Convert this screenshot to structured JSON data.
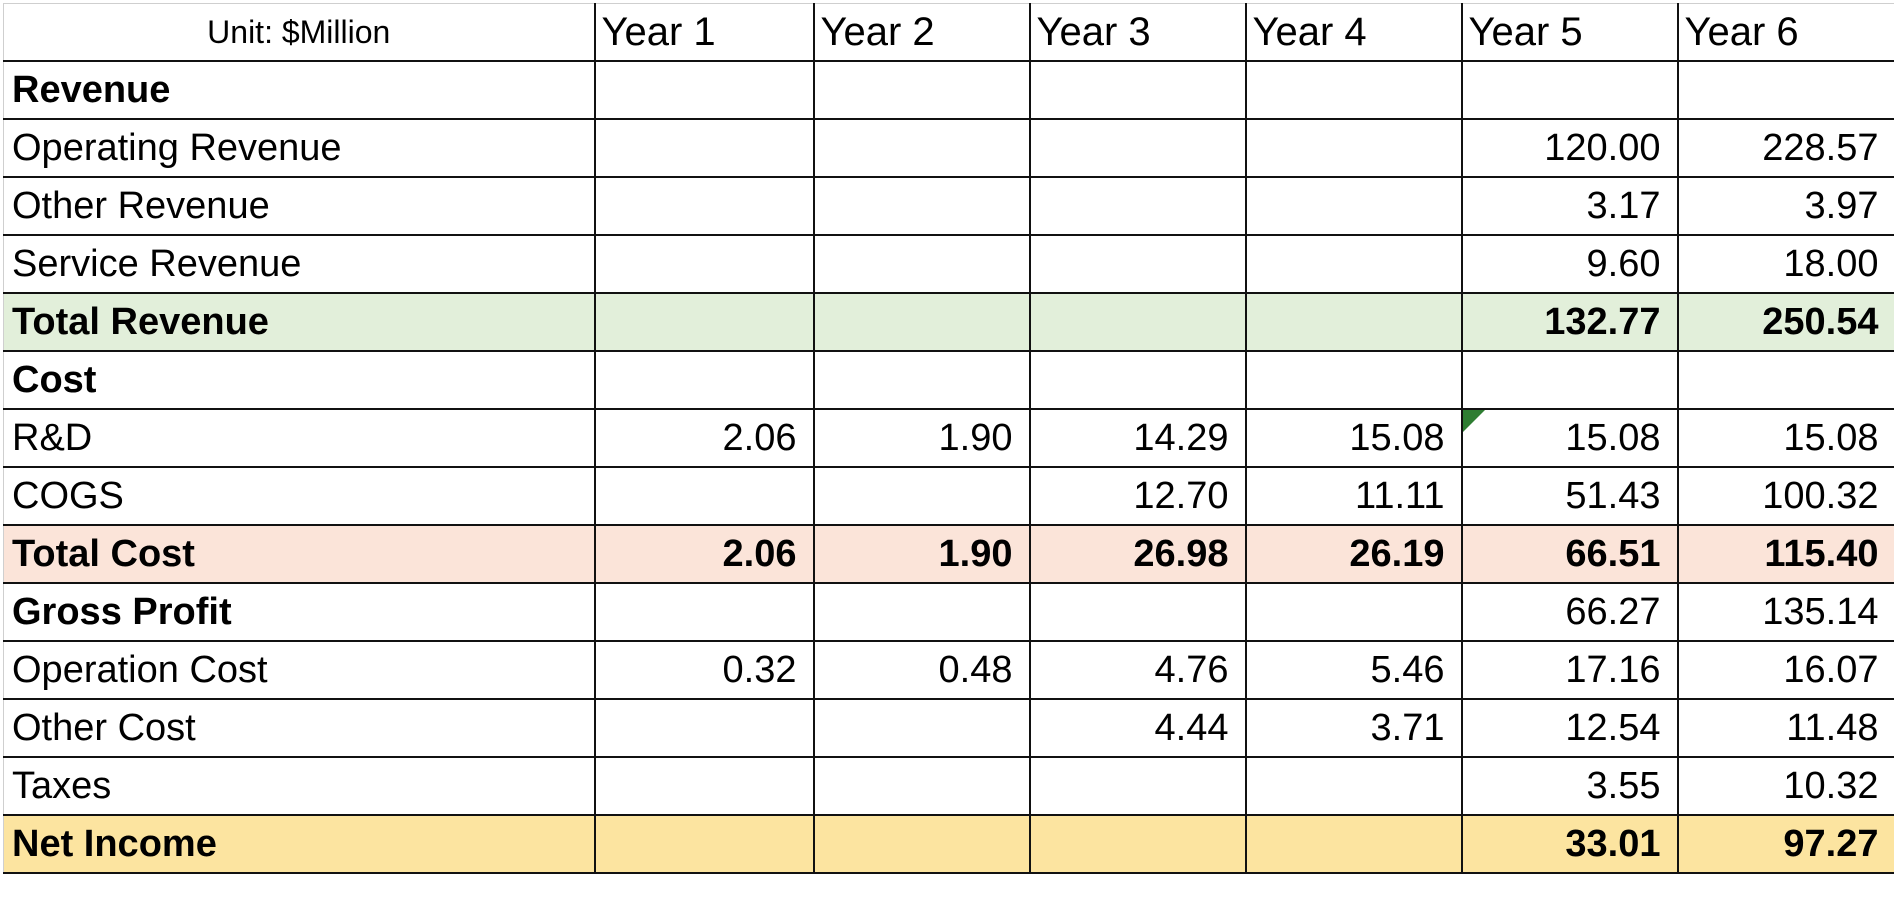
{
  "header": {
    "unit_label": "Unit: $Million",
    "years": [
      "Year 1",
      "Year 2",
      "Year 3",
      "Year 4",
      "Year 5",
      "Year 6"
    ]
  },
  "colors": {
    "total_revenue_fill": "#e2efda",
    "total_cost_fill": "#fbe4d9",
    "net_income_fill": "#fce4a0",
    "comment_marker": "#2e7d32"
  },
  "rows": [
    {
      "label": "Revenue",
      "values": [
        "",
        "",
        "",
        "",
        "",
        ""
      ]
    },
    {
      "label": "Operating Revenue",
      "values": [
        "",
        "",
        "",
        "",
        "120.00",
        "228.57"
      ]
    },
    {
      "label": "Other Revenue",
      "values": [
        "",
        "",
        "",
        "",
        "3.17",
        "3.97"
      ]
    },
    {
      "label": "Service Revenue",
      "values": [
        "",
        "",
        "",
        "",
        "9.60",
        "18.00"
      ]
    },
    {
      "label": "Total Revenue",
      "values": [
        "",
        "",
        "",
        "",
        "132.77",
        "250.54"
      ]
    },
    {
      "label": "Cost",
      "values": [
        "",
        "",
        "",
        "",
        "",
        ""
      ]
    },
    {
      "label": "R&D",
      "values": [
        "2.06",
        "1.90",
        "14.29",
        "15.08",
        "15.08",
        "15.08"
      ]
    },
    {
      "label": "COGS",
      "values": [
        "",
        "",
        "12.70",
        "11.11",
        "51.43",
        "100.32"
      ]
    },
    {
      "label": "Total Cost",
      "values": [
        "2.06",
        "1.90",
        "26.98",
        "26.19",
        "66.51",
        "115.40"
      ]
    },
    {
      "label": "Gross Profit",
      "values": [
        "",
        "",
        "",
        "",
        "66.27",
        "135.14"
      ]
    },
    {
      "label": "Operation Cost",
      "values": [
        "0.32",
        "0.48",
        "4.76",
        "5.46",
        "17.16",
        "16.07"
      ]
    },
    {
      "label": "Other Cost",
      "values": [
        "",
        "",
        "4.44",
        "3.71",
        "12.54",
        "11.48"
      ]
    },
    {
      "label": "Taxes",
      "values": [
        "",
        "",
        "",
        "",
        "3.55",
        "10.32"
      ]
    },
    {
      "label": "Net Income",
      "values": [
        "",
        "",
        "",
        "",
        "33.01",
        "97.27"
      ]
    }
  ]
}
